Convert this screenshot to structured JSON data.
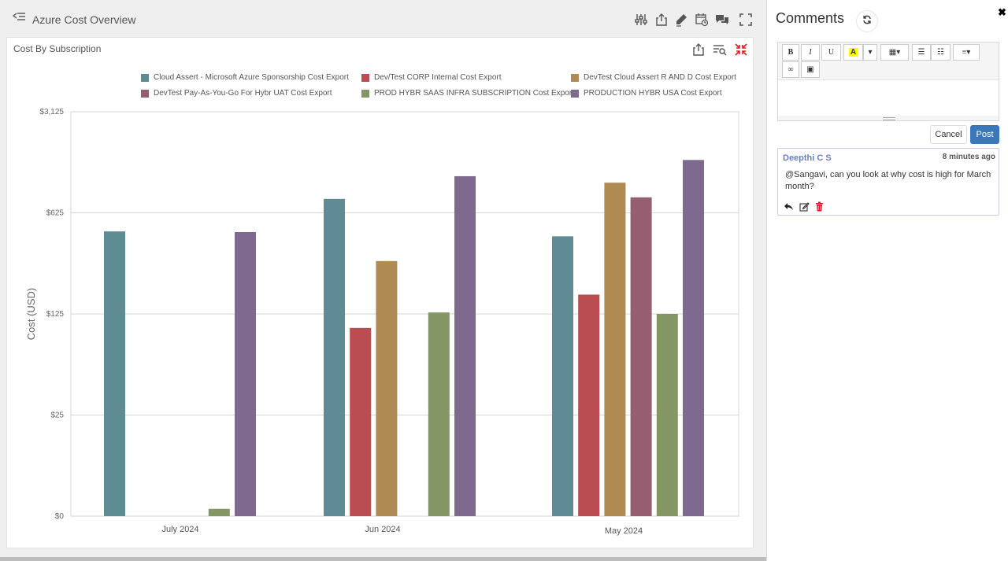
{
  "header": {
    "title": "Azure Cost Overview"
  },
  "toolbar_icons": [
    "filter-sliders-icon",
    "share-icon",
    "edit-icon",
    "calendar-icon",
    "comments-icon",
    "fullscreen-icon"
  ],
  "widget": {
    "title": "Cost By Subscription"
  },
  "chart_data": {
    "type": "bar",
    "ylabel": "Cost (USD)",
    "xlabel": "",
    "y_scale": "log",
    "y_ticks": [
      "$0",
      "$25",
      "$125",
      "$625",
      "$3,125"
    ],
    "ylim": [
      0,
      3125
    ],
    "grid": true,
    "legend_position": "top",
    "categories": [
      "July 2024",
      "Jun 2024",
      "May 2024"
    ],
    "series": [
      {
        "name": "Cloud Assert - Microsoft Azure Sponsorship Cost Export",
        "color": "#5f8b95",
        "values": [
          465,
          780,
          430
        ]
      },
      {
        "name": "Dev/Test CORP Internal Cost Export",
        "color": "#ba4d51",
        "values": [
          null,
          100,
          170
        ]
      },
      {
        "name": "DevTest Cloud Assert R AND D Cost Export",
        "color": "#af8a53",
        "values": [
          null,
          290,
          1010
        ]
      },
      {
        "name": "DevTest Pay-As-You-Go For Hybr UAT Cost Export",
        "color": "#955f71",
        "values": [
          null,
          null,
          800
        ]
      },
      {
        "name": "PROD HYBR SAAS INFRA SUBSCRIPTION Cost Export",
        "color": "#859666",
        "values": [
          1.8,
          128,
          125
        ]
      },
      {
        "name": "PRODUCTION HYBR USA Cost Export",
        "color": "#7e6a8e",
        "values": [
          460,
          1120,
          1450
        ]
      }
    ]
  },
  "comments": {
    "title": "Comments",
    "editor_buttons": {
      "bold": "B",
      "italic": "I",
      "underline": "U",
      "highlight": "A"
    },
    "cancel_label": "Cancel",
    "post_label": "Post",
    "items": [
      {
        "author": "Deepthi C S",
        "time": "8 minutes ago",
        "text": "@Sangavi, can you look at why cost is high for March month?"
      }
    ]
  }
}
